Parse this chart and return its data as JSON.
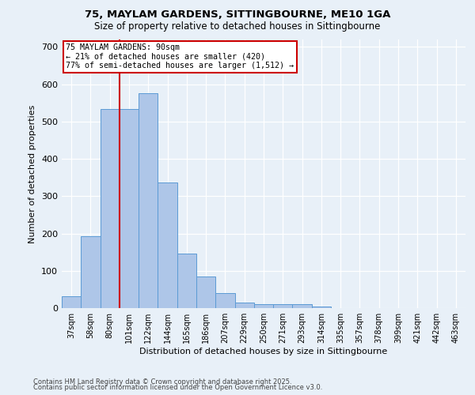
{
  "title1": "75, MAYLAM GARDENS, SITTINGBOURNE, ME10 1GA",
  "title2": "Size of property relative to detached houses in Sittingbourne",
  "xlabel": "Distribution of detached houses by size in Sittingbourne",
  "ylabel": "Number of detached properties",
  "bar_labels": [
    "37sqm",
    "58sqm",
    "80sqm",
    "101sqm",
    "122sqm",
    "144sqm",
    "165sqm",
    "186sqm",
    "207sqm",
    "229sqm",
    "250sqm",
    "271sqm",
    "293sqm",
    "314sqm",
    "335sqm",
    "357sqm",
    "378sqm",
    "399sqm",
    "421sqm",
    "442sqm",
    "463sqm"
  ],
  "bar_values": [
    32,
    193,
    533,
    534,
    575,
    336,
    147,
    85,
    41,
    14,
    10,
    10,
    10,
    5,
    0,
    0,
    0,
    0,
    0,
    0,
    0
  ],
  "bar_color": "#aec6e8",
  "bar_edge_color": "#5b9bd5",
  "annotation_text": "75 MAYLAM GARDENS: 90sqm\n← 21% of detached houses are smaller (420)\n77% of semi-detached houses are larger (1,512) →",
  "annotation_box_color": "#ffffff",
  "annotation_box_edge": "#cc0000",
  "vline_color": "#cc0000",
  "vline_x": 2.5,
  "footnote1": "Contains HM Land Registry data © Crown copyright and database right 2025.",
  "footnote2": "Contains public sector information licensed under the Open Government Licence v3.0.",
  "bg_color": "#e8f0f8",
  "ylim": [
    0,
    720
  ],
  "yticks": [
    0,
    100,
    200,
    300,
    400,
    500,
    600,
    700
  ]
}
